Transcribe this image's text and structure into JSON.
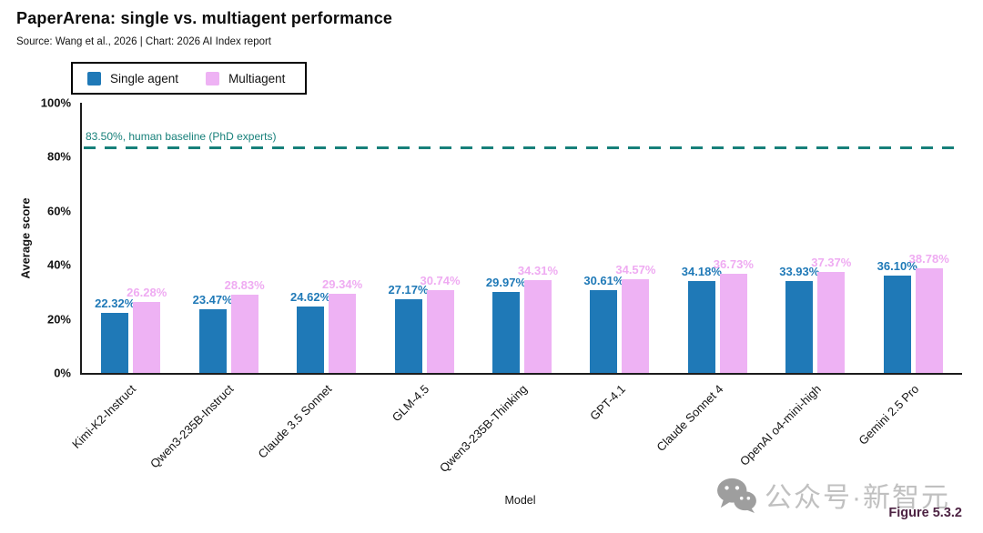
{
  "header": {
    "title": "PaperArena: single vs. multiagent performance",
    "source": "Source: Wang et al., 2026 | Chart: 2026 AI Index report"
  },
  "legend": {
    "items": [
      {
        "label": "Single agent",
        "color": "#1f79b7"
      },
      {
        "label": "Multiagent",
        "color": "#eeb2f4"
      }
    ]
  },
  "chart_data": {
    "type": "bar",
    "title": "PaperArena: single vs. multiagent performance",
    "xlabel": "Model",
    "ylabel": "Average score",
    "ylim": [
      0,
      100
    ],
    "grid": false,
    "legend_position": "top-left",
    "ytick_values": [
      0,
      20,
      40,
      60,
      80,
      100
    ],
    "ytick_labels": [
      "0%",
      "20%",
      "40%",
      "60%",
      "80%",
      "100%"
    ],
    "categories": [
      "Kimi-K2-Instruct",
      "Qwen3-235B-Instruct",
      "Claude 3.5 Sonnet",
      "GLM-4.5",
      "Qwen3-235B-Thinking",
      "GPT-4.1",
      "Claude Sonnet 4",
      "OpenAI o4-mini-high",
      "Gemini 2.5 Pro"
    ],
    "series": [
      {
        "name": "Single agent",
        "color": "#1f79b7",
        "label_color": "#1f79b7",
        "values": [
          22.32,
          23.47,
          24.62,
          27.17,
          29.97,
          30.61,
          34.18,
          33.93,
          36.1
        ],
        "labels": [
          "22.32%",
          "23.47%",
          "24.62%",
          "27.17%",
          "29.97%",
          "30.61%",
          "34.18%",
          "33.93%",
          "36.10%"
        ]
      },
      {
        "name": "Multiagent",
        "color": "#eeb2f4",
        "label_color": "#efabf2",
        "values": [
          26.28,
          28.83,
          29.34,
          30.74,
          34.31,
          34.57,
          36.73,
          37.37,
          38.78
        ],
        "labels": [
          "26.28%",
          "28.83%",
          "29.34%",
          "30.74%",
          "34.31%",
          "34.57%",
          "36.73%",
          "37.37%",
          "38.78%"
        ]
      }
    ],
    "baseline": {
      "value": 83.5,
      "label": "83.50%, human baseline (PhD experts)",
      "color": "#17807a"
    }
  },
  "footer": {
    "figure_label": "Figure 5.3.2",
    "watermark_text": "公众号·新智元",
    "watermark_icon": "wechat-icon"
  }
}
